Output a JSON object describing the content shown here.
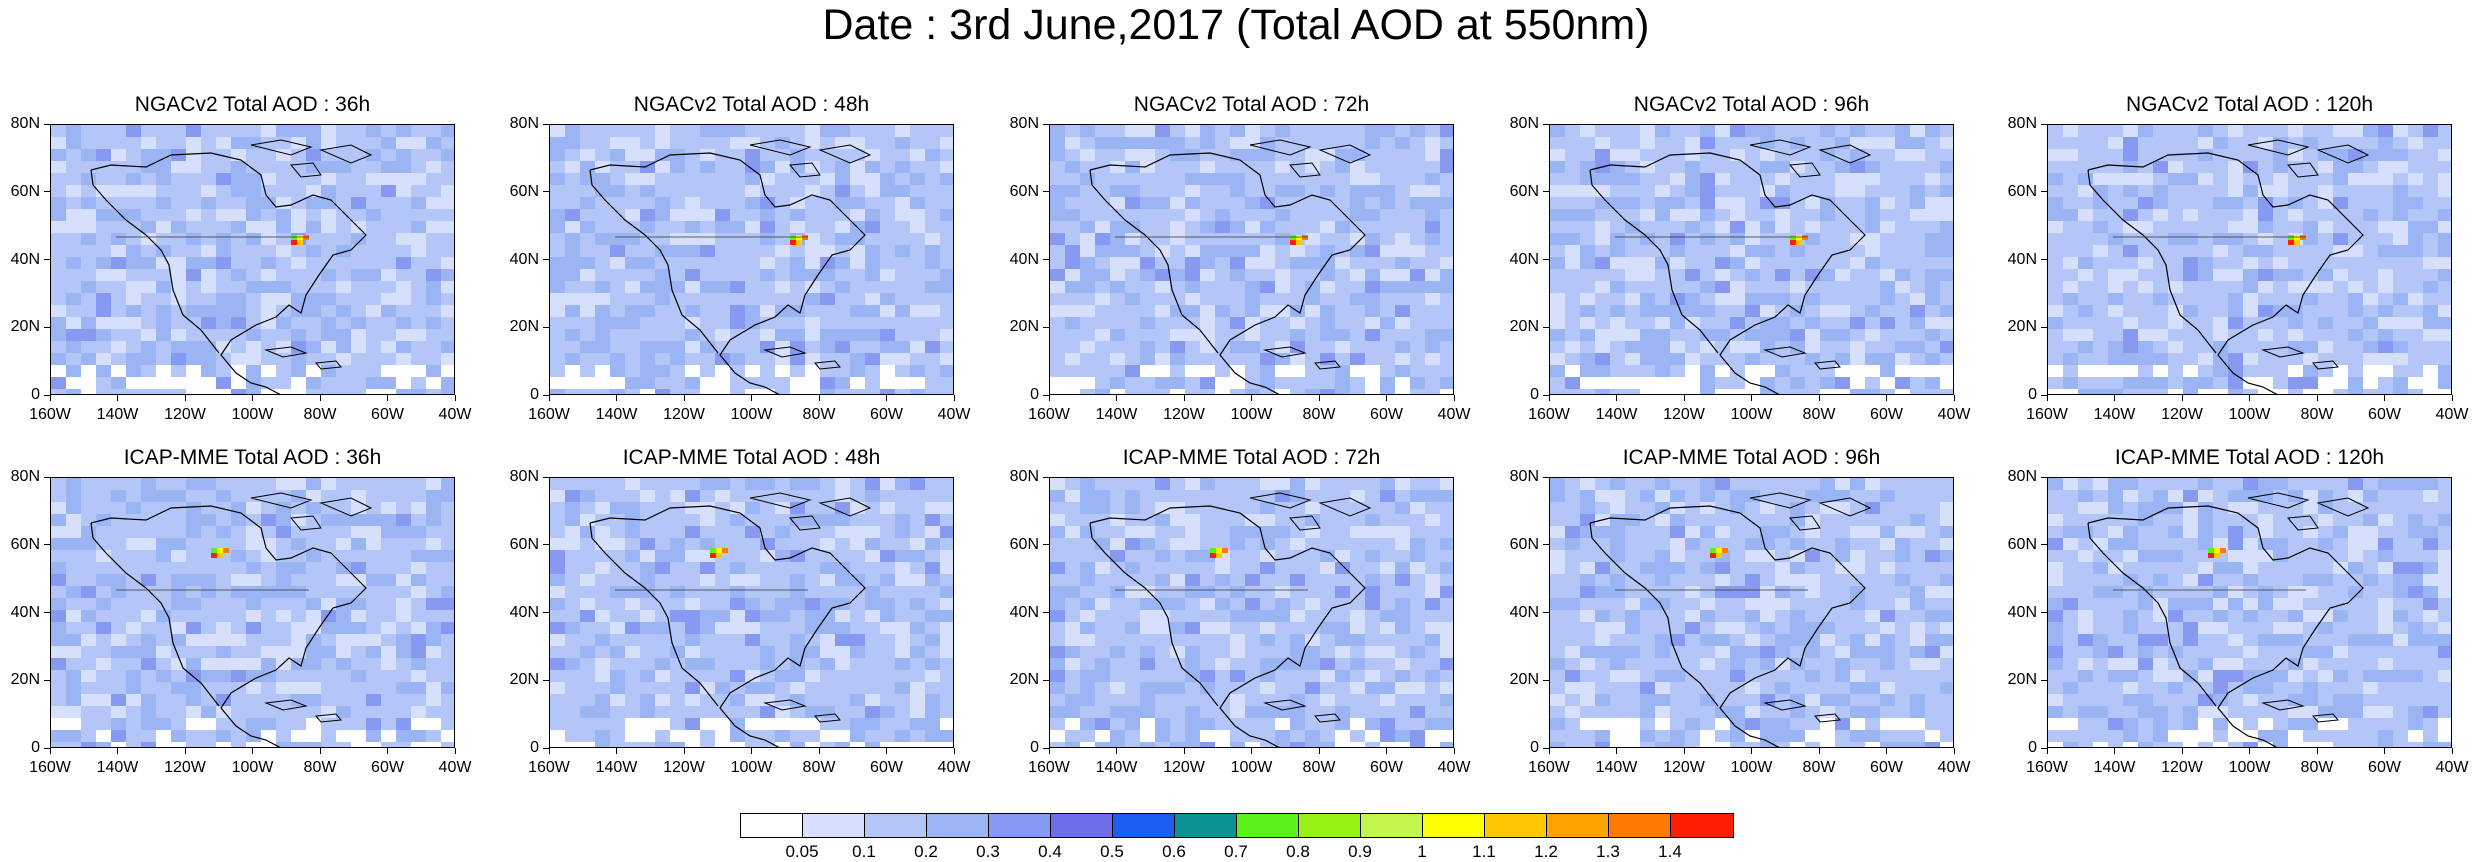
{
  "title": "Date : 3rd June,2017 (Total AOD at 550nm)",
  "panels": [
    {
      "title": "NGACv2 Total AOD : 36h",
      "row": 0,
      "col": 0
    },
    {
      "title": "NGACv2 Total AOD : 48h",
      "row": 0,
      "col": 1
    },
    {
      "title": "NGACv2 Total AOD : 72h",
      "row": 0,
      "col": 2
    },
    {
      "title": "NGACv2 Total AOD : 96h",
      "row": 0,
      "col": 3
    },
    {
      "title": "NGACv2 Total AOD : 120h",
      "row": 0,
      "col": 4
    },
    {
      "title": "ICAP-MME Total AOD : 36h",
      "row": 1,
      "col": 0
    },
    {
      "title": "ICAP-MME Total AOD : 48h",
      "row": 1,
      "col": 1
    },
    {
      "title": "ICAP-MME Total AOD : 72h",
      "row": 1,
      "col": 2
    },
    {
      "title": "ICAP-MME Total AOD : 96h",
      "row": 1,
      "col": 3
    },
    {
      "title": "ICAP-MME Total AOD : 120h",
      "row": 1,
      "col": 4
    }
  ],
  "lat_ticks": [
    "80N",
    "60N",
    "40N",
    "20N",
    "0"
  ],
  "lon_ticks": [
    "160W",
    "140W",
    "120W",
    "100W",
    "80W",
    "60W",
    "40W"
  ],
  "colorbar": {
    "colors": [
      "#ffffff",
      "#d6e0fc",
      "#b4c6f8",
      "#9ab4f4",
      "#8799f0",
      "#6f6ee9",
      "#1d5ef2",
      "#0c9395",
      "#5cf01c",
      "#96f115",
      "#c3f54d",
      "#ffff00",
      "#ffc800",
      "#ffa300",
      "#ff7a00",
      "#ff1f00"
    ],
    "labels": [
      "0.05",
      "0.1",
      "0.2",
      "0.3",
      "0.4",
      "0.5",
      "0.6",
      "0.7",
      "0.8",
      "0.9",
      "1",
      "1.1",
      "1.2",
      "1.3",
      "1.4"
    ]
  }
}
